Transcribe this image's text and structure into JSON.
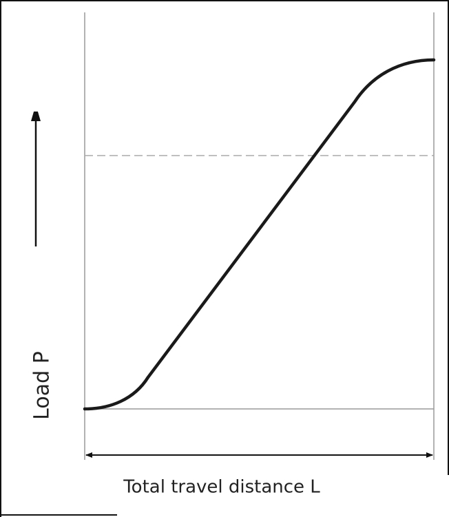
{
  "labels": {
    "y_axis": "Load P",
    "x_axis": "Total travel distance L"
  }
}
